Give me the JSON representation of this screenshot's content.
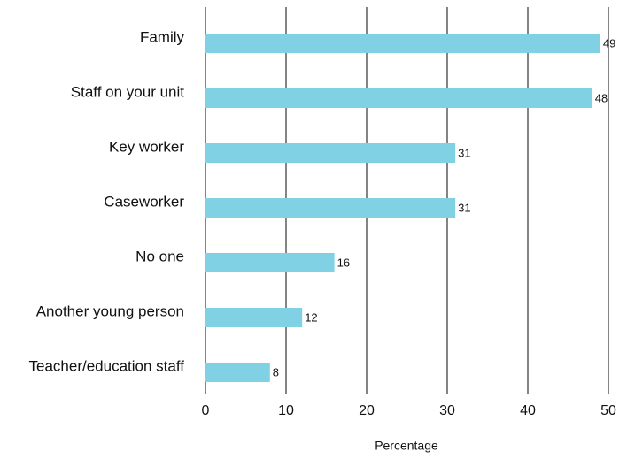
{
  "chart_data": {
    "type": "bar",
    "orientation": "horizontal",
    "x_label": "Percentage",
    "categories": [
      "Family",
      "Staff on your unit",
      "Key worker",
      "Caseworker",
      "No one",
      "Another young person",
      "Teacher/education staff"
    ],
    "values": [
      49,
      48,
      31,
      31,
      16,
      12,
      8
    ],
    "color": "#7fd1e3",
    "xlim": [
      0,
      50
    ],
    "xticks": [
      0,
      10,
      20,
      30,
      40,
      50
    ],
    "grid": true
  }
}
